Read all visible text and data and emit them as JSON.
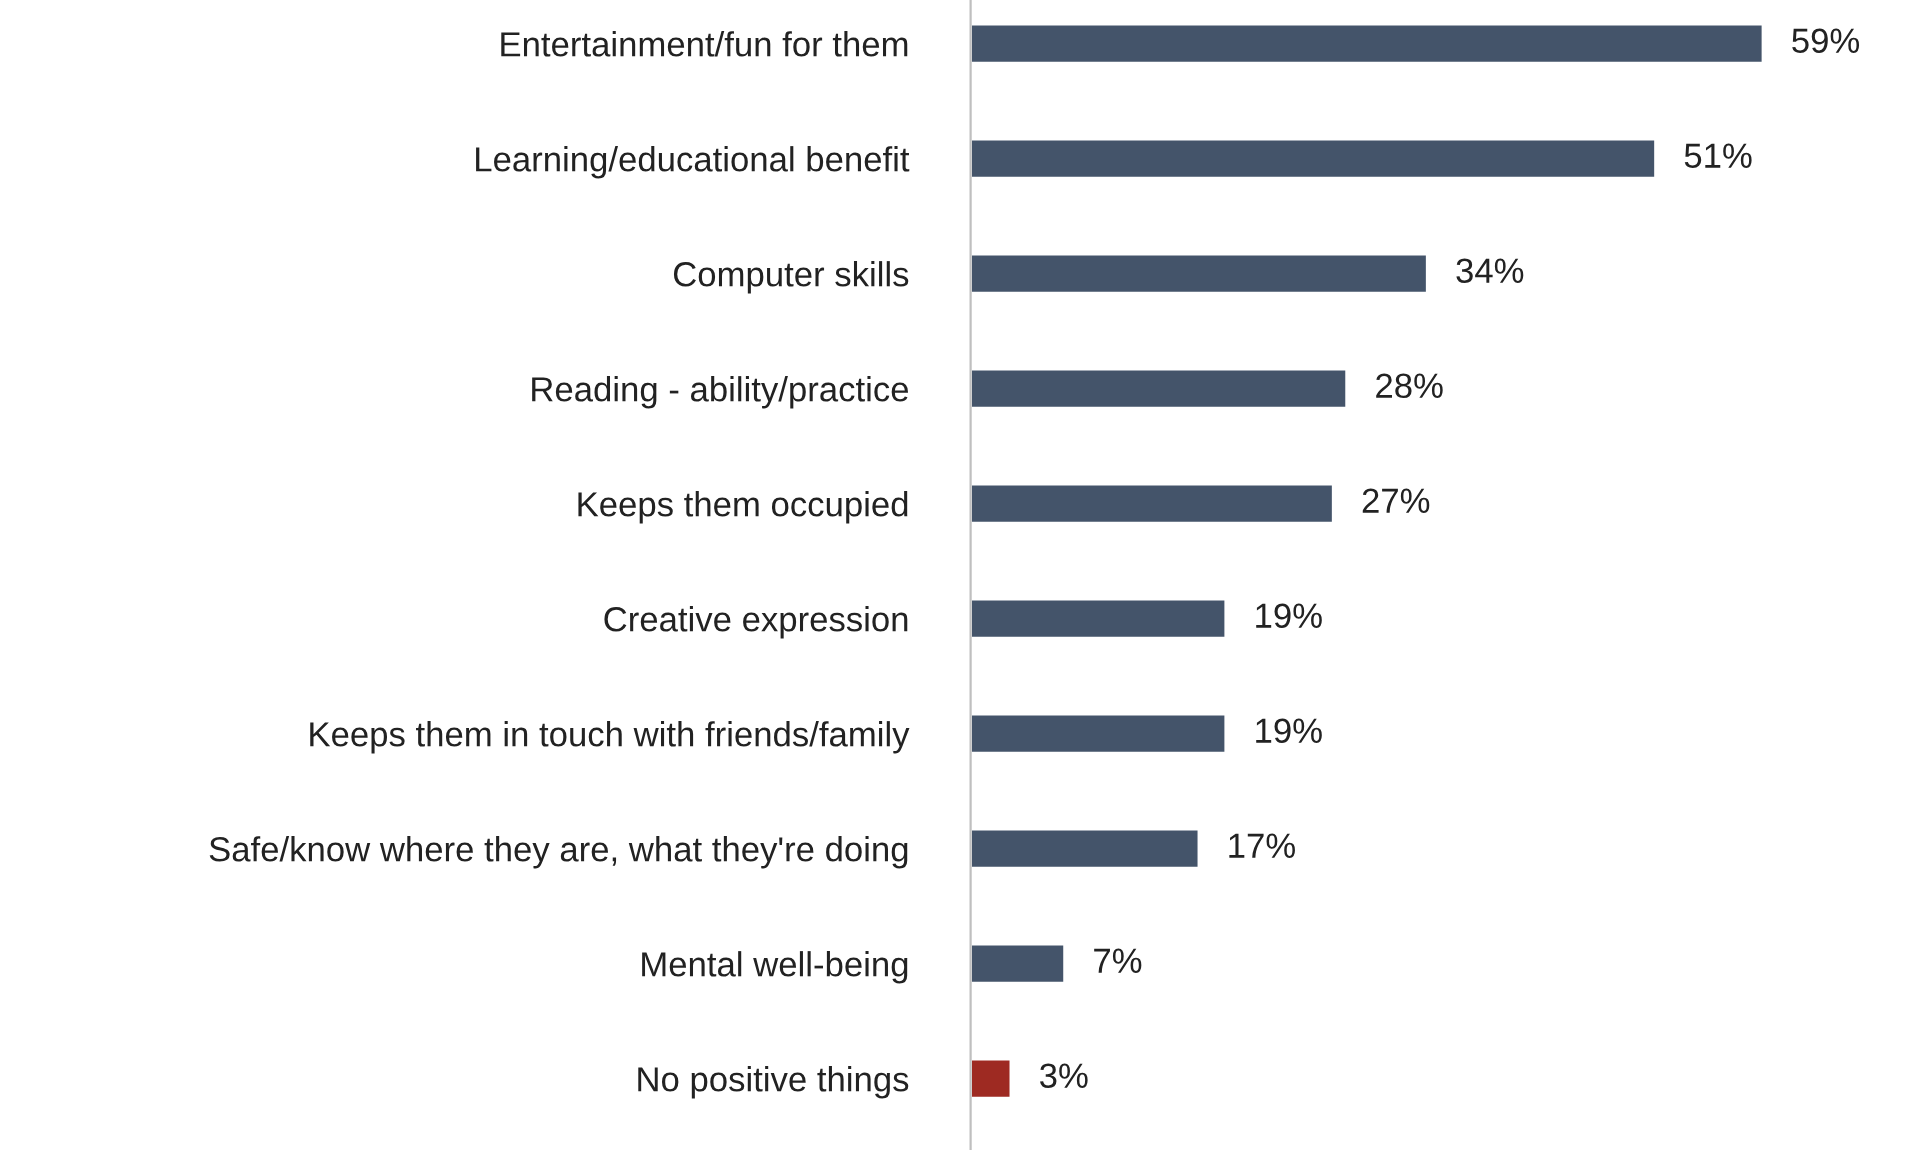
{
  "chart_data": {
    "type": "bar",
    "orientation": "horizontal",
    "categories": [
      "Entertainment/fun for them",
      "Learning/educational benefit",
      "Computer skills",
      "Reading - ability/practice",
      "Keeps them occupied",
      "Creative expression",
      "Keeps them in touch with friends/family",
      "Safe/know where they are, what they're doing",
      "Mental well-being",
      "No positive things"
    ],
    "values": [
      59,
      51,
      34,
      28,
      27,
      19,
      19,
      17,
      7,
      3
    ],
    "value_labels": [
      "59%",
      "51%",
      "34%",
      "28%",
      "27%",
      "19%",
      "19%",
      "17%",
      "7%",
      "3%"
    ],
    "colors": [
      "#44546a",
      "#44546a",
      "#44546a",
      "#44546a",
      "#44546a",
      "#44546a",
      "#44546a",
      "#44546a",
      "#44546a",
      "#9e2a22"
    ],
    "grid": false,
    "legend": false
  }
}
